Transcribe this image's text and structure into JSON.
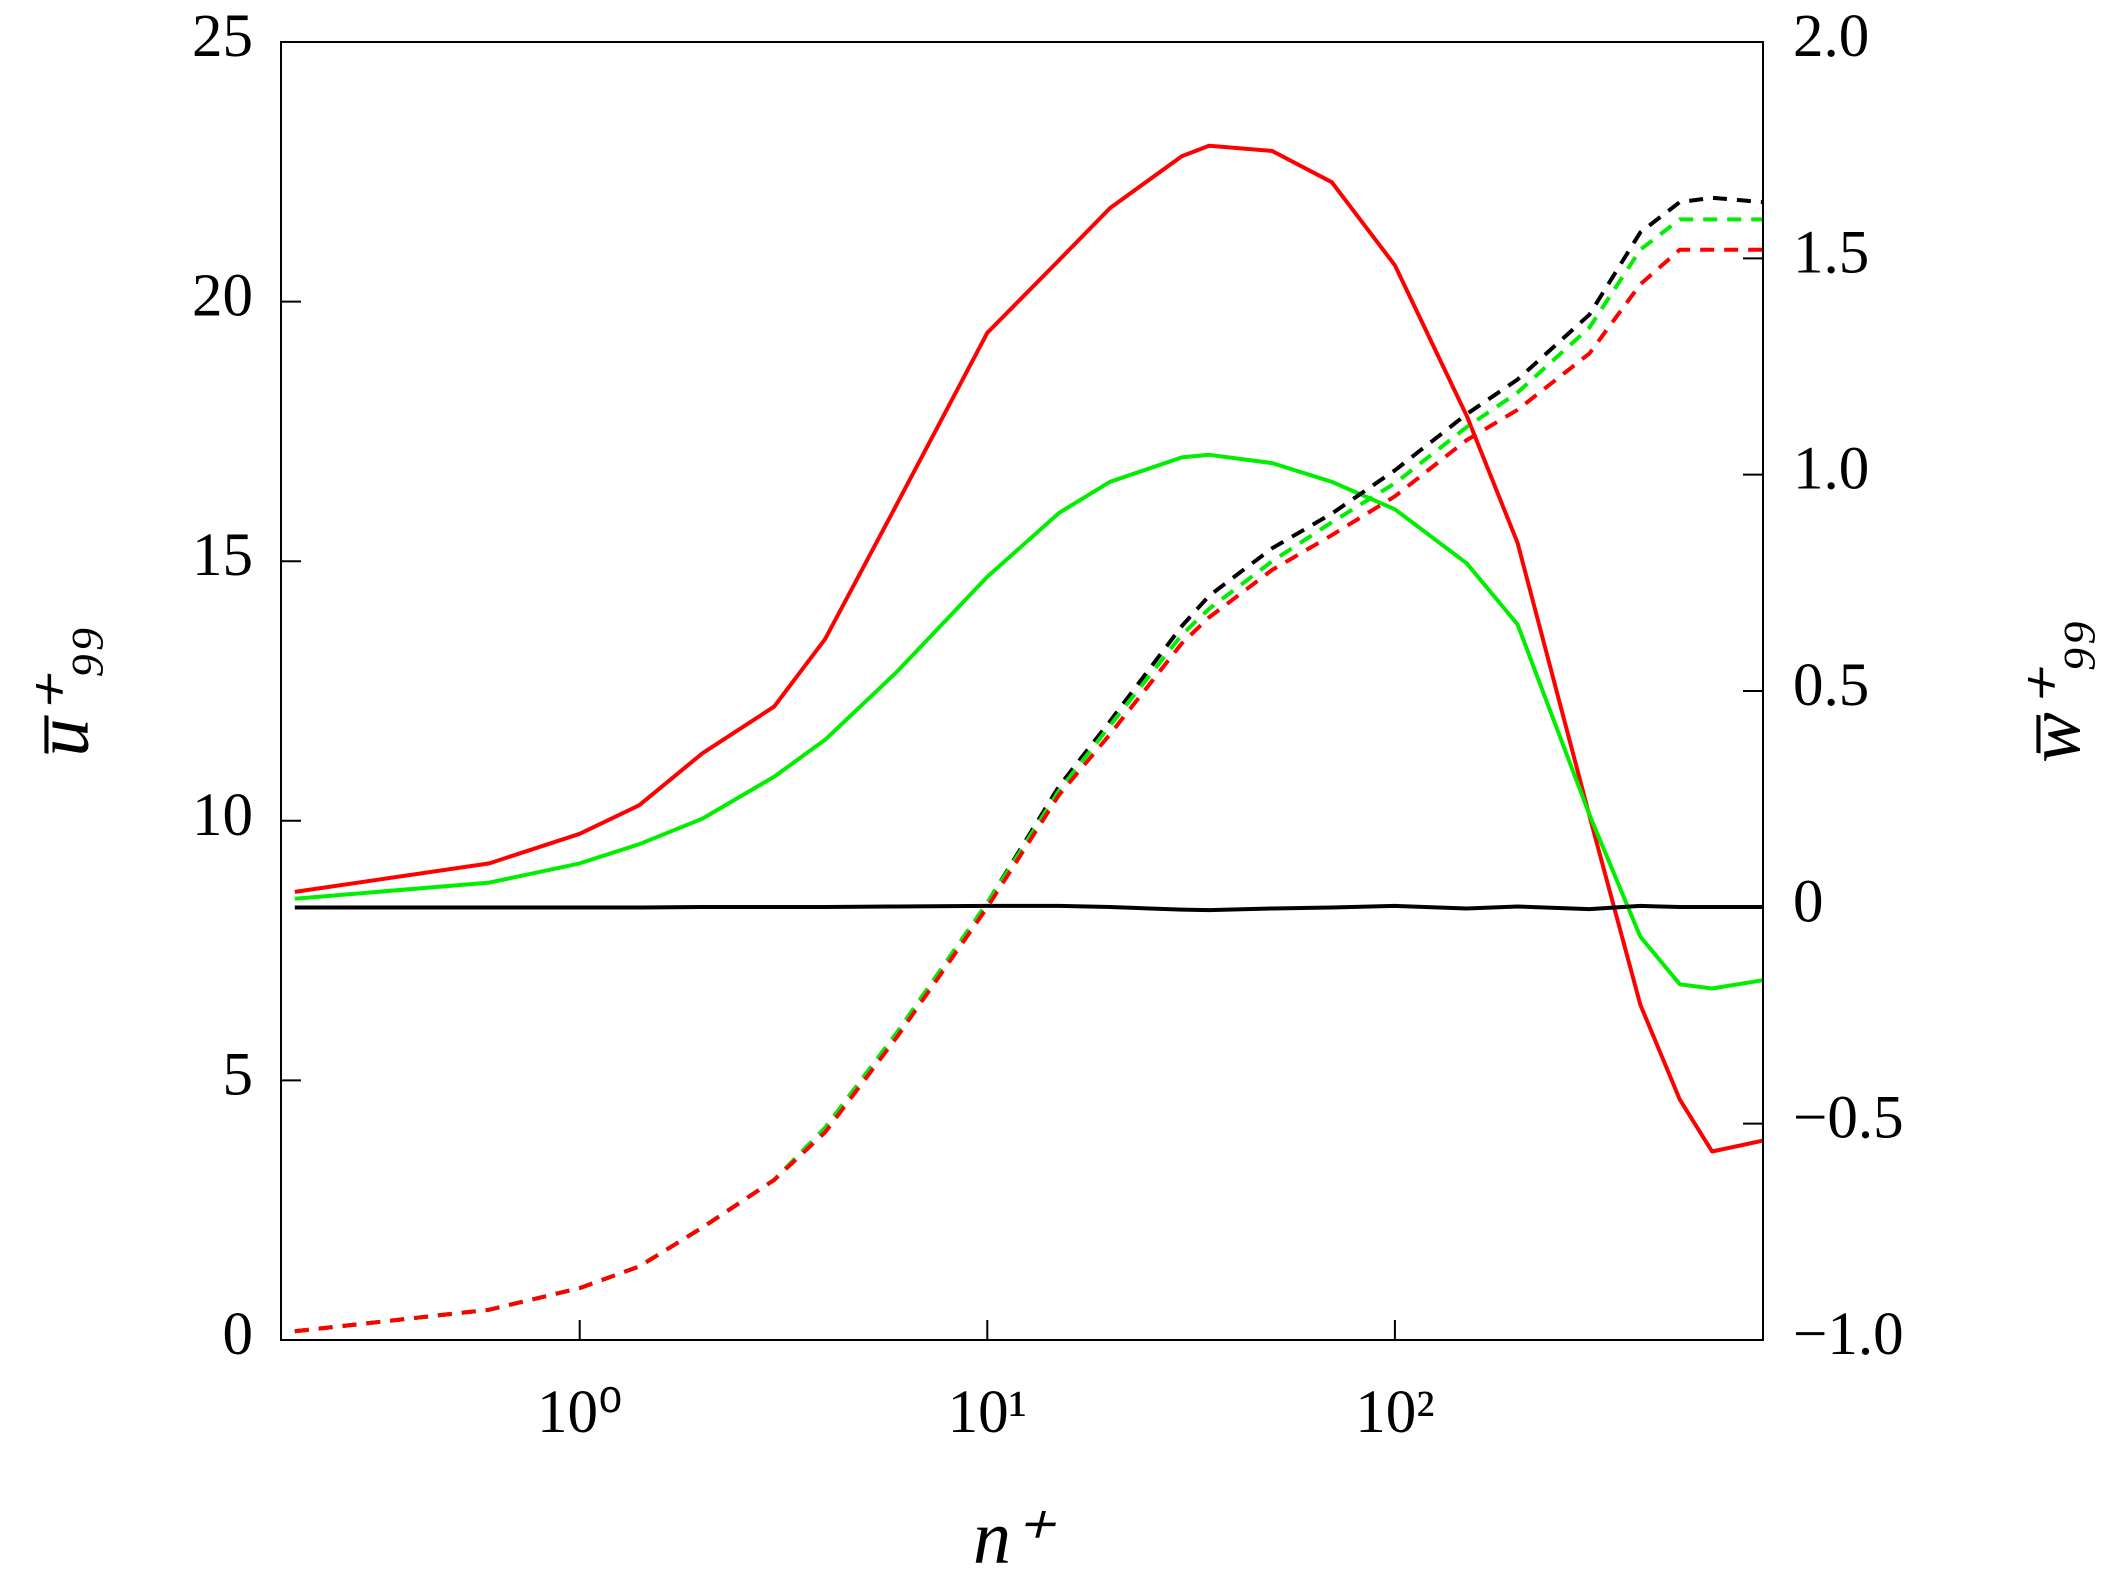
{
  "chart_data": {
    "type": "line",
    "xlabel": "n⁺",
    "ylabel": "u̅⁺₉₉",
    "y2label": "w̅⁺₉₉",
    "x": [
      0.2,
      0.6,
      1,
      1.4,
      2,
      3,
      4,
      6,
      10,
      15,
      20,
      30,
      35,
      50,
      70,
      100,
      150,
      200,
      300,
      400,
      500,
      600,
      800
    ],
    "xscale": "log",
    "xlim": [
      0.185,
      800
    ],
    "xticks": [
      {
        "value": 1,
        "label": "10⁰"
      },
      {
        "value": 10,
        "label": "10¹"
      },
      {
        "value": 100,
        "label": "10²"
      }
    ],
    "ylim": [
      0,
      25
    ],
    "yticks": [
      0,
      5,
      10,
      15,
      20,
      25
    ],
    "y2lim": [
      -1.0,
      2.0
    ],
    "y2ticks": [
      {
        "value": -1.0,
        "label": "−1.0"
      },
      {
        "value": -0.5,
        "label": "−0.5"
      },
      0,
      {
        "value": 0.5,
        "label": "0.5"
      },
      {
        "value": 1.0,
        "label": "1.0"
      },
      {
        "value": 1.5,
        "label": "1.5"
      },
      {
        "value": 2.0,
        "label": "2.0"
      }
    ],
    "series": [
      {
        "color": "#ff0000",
        "linestyle": "solid",
        "values": [
          8.63,
          9.18,
          9.75,
          10.3,
          11.3,
          12.2,
          13.5,
          16.1,
          19.4,
          20.8,
          21.8,
          22.8,
          23.0,
          22.9,
          22.3,
          20.7,
          17.8,
          15.35,
          10.1,
          6.46,
          4.63,
          3.63,
          3.84
        ]
      },
      {
        "color": "#00ee00",
        "linestyle": "solid",
        "values": [
          8.5,
          8.81,
          9.18,
          9.55,
          10.04,
          10.85,
          11.56,
          12.87,
          14.7,
          15.93,
          16.53,
          17.0,
          17.05,
          16.89,
          16.53,
          16.0,
          14.96,
          13.78,
          10.12,
          7.77,
          6.85,
          6.77,
          6.93
        ]
      },
      {
        "color": "#000000",
        "linestyle": "solid",
        "values": [
          8.33,
          8.33,
          8.33,
          8.33,
          8.34,
          8.34,
          8.34,
          8.35,
          8.36,
          8.36,
          8.34,
          8.29,
          8.28,
          8.31,
          8.33,
          8.36,
          8.31,
          8.35,
          8.3,
          8.36,
          8.34,
          8.34,
          8.34
        ]
      },
      {
        "color": "#000000",
        "linestyle": "dashed",
        "axis": "y2",
        "values": [
          -0.98,
          -0.93,
          -0.88,
          -0.83,
          -0.74,
          -0.63,
          -0.51,
          -0.29,
          0.01,
          0.28,
          0.43,
          0.65,
          0.72,
          0.83,
          0.91,
          1.01,
          1.14,
          1.22,
          1.37,
          1.56,
          1.63,
          1.64,
          1.63
        ]
      },
      {
        "color": "#00ee00",
        "linestyle": "dashed",
        "axis": "y2",
        "values": [
          -0.98,
          -0.93,
          -0.88,
          -0.83,
          -0.74,
          -0.63,
          -0.51,
          -0.29,
          0.01,
          0.27,
          0.42,
          0.63,
          0.69,
          0.8,
          0.89,
          0.98,
          1.11,
          1.19,
          1.34,
          1.52,
          1.59,
          1.59,
          1.59
        ]
      },
      {
        "color": "#ff0000",
        "linestyle": "dashed",
        "axis": "y2",
        "values": [
          -0.98,
          -0.93,
          -0.88,
          -0.83,
          -0.74,
          -0.63,
          -0.52,
          -0.3,
          0.0,
          0.26,
          0.4,
          0.61,
          0.67,
          0.78,
          0.86,
          0.95,
          1.08,
          1.15,
          1.28,
          1.44,
          1.52,
          1.52,
          1.52
        ]
      }
    ]
  }
}
